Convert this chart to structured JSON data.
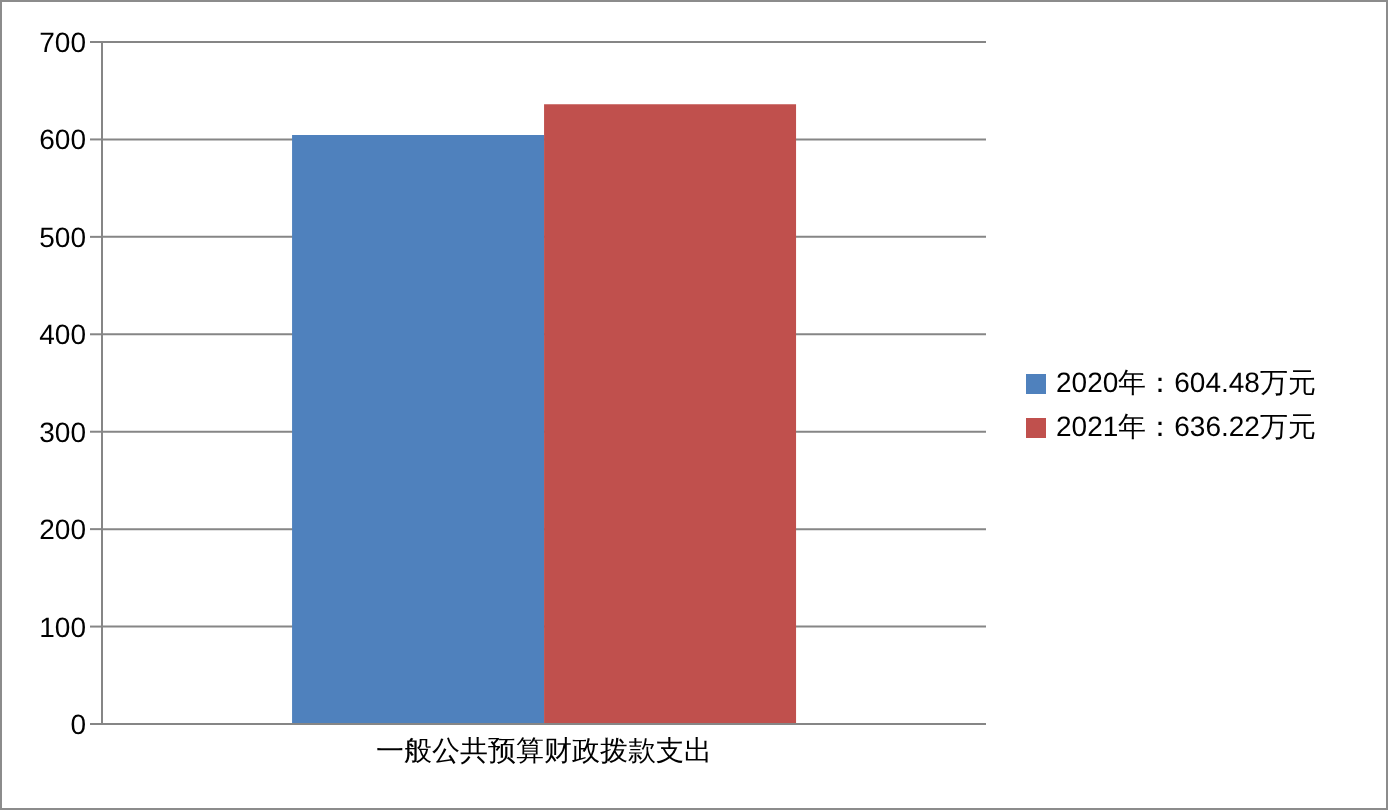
{
  "chart_data": {
    "type": "bar",
    "categories": [
      "一般公共预算财政拨款支出"
    ],
    "series": [
      {
        "name": "2020年：604.48万元",
        "color": "#4f81bd",
        "values": [
          604.48
        ]
      },
      {
        "name": "2021年：636.22万元",
        "color": "#c0504d",
        "values": [
          636.22
        ]
      }
    ],
    "ylim": [
      0,
      700
    ],
    "yticks": [
      0,
      100,
      200,
      300,
      400,
      500,
      600,
      700
    ],
    "grid": "y",
    "legend": "right"
  }
}
